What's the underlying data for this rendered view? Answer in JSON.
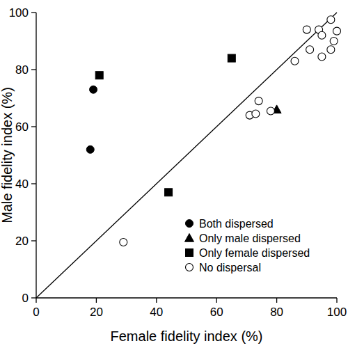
{
  "chart_data": {
    "type": "scatter",
    "x_label": "Female fidelity index (%)",
    "y_label": "Male fidelity index (%)",
    "xlim": [
      0,
      100
    ],
    "ylim": [
      0,
      100
    ],
    "xticks": [
      0,
      20,
      40,
      60,
      80,
      100
    ],
    "yticks": [
      0,
      20,
      40,
      60,
      80,
      100
    ],
    "grid": false,
    "legend": "bottom-right",
    "series": [
      {
        "name": "Both dispersed",
        "color": "#000000",
        "marker": "circle",
        "x": [
          19,
          18
        ],
        "values": [
          73,
          52
        ]
      },
      {
        "name": "Only male dispersed",
        "color": "#000000",
        "marker": "triangle",
        "x": [
          80
        ],
        "values": [
          66
        ]
      },
      {
        "name": "Only female dispersed",
        "color": "#000000",
        "marker": "square",
        "x": [
          21,
          65,
          44
        ],
        "values": [
          78,
          84,
          37
        ]
      },
      {
        "name": "No dispersal",
        "color": "#000000",
        "marker": "open-circle",
        "x": [
          29,
          71,
          73,
          74,
          78,
          86,
          90,
          91,
          94,
          95,
          95,
          98,
          98,
          99,
          100
        ],
        "values": [
          19.5,
          64,
          64.5,
          69,
          65.5,
          83,
          94,
          87,
          94,
          92,
          84.5,
          97.5,
          87,
          90,
          93.5
        ]
      }
    ]
  }
}
